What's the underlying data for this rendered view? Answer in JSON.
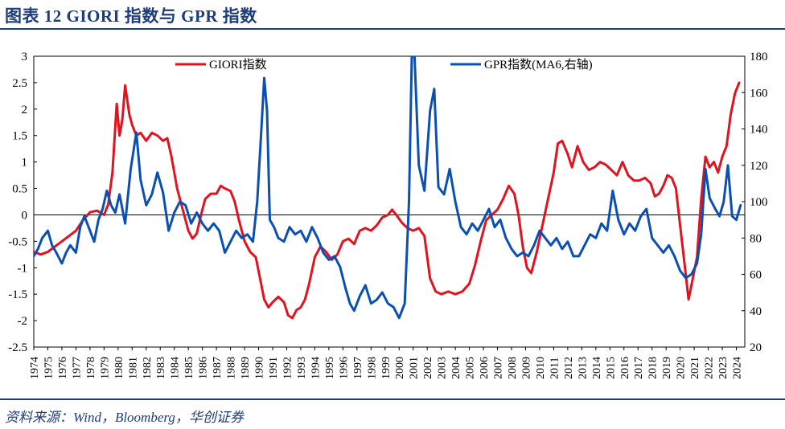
{
  "title": "图表 12 GIORI 指数与 GPR 指数",
  "source": "资料来源：Wind，Bloomberg，华创证券",
  "colors": {
    "giori": "#e3121e",
    "gpr": "#0a50b4",
    "accent": "#1f3d7a"
  },
  "chart_data": {
    "type": "line",
    "title": "GIORI 指数与 GPR 指数",
    "legend_position": "top",
    "left_axis": {
      "ylim": [
        -2.5,
        3
      ],
      "ticks": [
        3,
        2.5,
        2,
        1.5,
        1,
        0.5,
        0,
        -0.5,
        -1,
        -1.5,
        -2,
        -2.5
      ]
    },
    "right_axis": {
      "ylim": [
        20,
        180
      ],
      "ticks": [
        180,
        160,
        140,
        120,
        100,
        80,
        60,
        40,
        20
      ]
    },
    "x_axis": {
      "xlim": [
        1974,
        2024.6
      ],
      "tick_labels": [
        "1974",
        "1975",
        "1976",
        "1977",
        "1978",
        "1979",
        "1980",
        "1981",
        "1982",
        "1983",
        "1984",
        "1985",
        "1986",
        "1987",
        "1988",
        "1989",
        "1990",
        "1991",
        "1992",
        "1993",
        "1994",
        "1995",
        "1996",
        "1997",
        "1998",
        "1999",
        "2000",
        "2001",
        "2002",
        "2003",
        "2004",
        "2005",
        "2006",
        "2007",
        "2008",
        "2009",
        "2010",
        "2011",
        "2012",
        "2013",
        "2014",
        "2015",
        "2016",
        "2017",
        "2018",
        "2019",
        "2020",
        "2021",
        "2022",
        "2023",
        "2024"
      ]
    },
    "series": [
      {
        "name": "GIORI指数",
        "axis": "left",
        "color": "#e3121e",
        "points": [
          [
            1974.0,
            -0.7
          ],
          [
            1974.5,
            -0.75
          ],
          [
            1975.0,
            -0.7
          ],
          [
            1975.5,
            -0.6
          ],
          [
            1976.0,
            -0.5
          ],
          [
            1976.5,
            -0.4
          ],
          [
            1977.0,
            -0.3
          ],
          [
            1977.5,
            -0.1
          ],
          [
            1978.0,
            0.05
          ],
          [
            1978.5,
            0.08
          ],
          [
            1979.0,
            0.0
          ],
          [
            1979.3,
            0.2
          ],
          [
            1979.6,
            0.8
          ],
          [
            1979.9,
            2.1
          ],
          [
            1980.1,
            1.5
          ],
          [
            1980.3,
            1.8
          ],
          [
            1980.5,
            2.45
          ],
          [
            1980.8,
            1.9
          ],
          [
            1981.0,
            1.7
          ],
          [
            1981.3,
            1.5
          ],
          [
            1981.6,
            1.55
          ],
          [
            1982.0,
            1.4
          ],
          [
            1982.4,
            1.55
          ],
          [
            1982.8,
            1.5
          ],
          [
            1983.2,
            1.4
          ],
          [
            1983.5,
            1.45
          ],
          [
            1983.8,
            1.1
          ],
          [
            1984.2,
            0.5
          ],
          [
            1984.6,
            0.1
          ],
          [
            1985.0,
            -0.3
          ],
          [
            1985.3,
            -0.45
          ],
          [
            1985.6,
            -0.35
          ],
          [
            1985.9,
            0.0
          ],
          [
            1986.2,
            0.3
          ],
          [
            1986.6,
            0.4
          ],
          [
            1987.0,
            0.4
          ],
          [
            1987.3,
            0.55
          ],
          [
            1987.6,
            0.5
          ],
          [
            1988.0,
            0.45
          ],
          [
            1988.3,
            0.25
          ],
          [
            1988.6,
            -0.1
          ],
          [
            1989.0,
            -0.5
          ],
          [
            1989.4,
            -0.7
          ],
          [
            1989.8,
            -0.8
          ],
          [
            1990.1,
            -1.2
          ],
          [
            1990.4,
            -1.6
          ],
          [
            1990.7,
            -1.75
          ],
          [
            1991.0,
            -1.65
          ],
          [
            1991.4,
            -1.55
          ],
          [
            1991.8,
            -1.65
          ],
          [
            1992.1,
            -1.9
          ],
          [
            1992.4,
            -1.95
          ],
          [
            1992.7,
            -1.8
          ],
          [
            1993.0,
            -1.75
          ],
          [
            1993.3,
            -1.6
          ],
          [
            1993.6,
            -1.3
          ],
          [
            1994.0,
            -0.8
          ],
          [
            1994.4,
            -0.6
          ],
          [
            1994.8,
            -0.7
          ],
          [
            1995.2,
            -0.85
          ],
          [
            1995.6,
            -0.75
          ],
          [
            1996.0,
            -0.5
          ],
          [
            1996.4,
            -0.45
          ],
          [
            1996.8,
            -0.55
          ],
          [
            1997.2,
            -0.3
          ],
          [
            1997.6,
            -0.25
          ],
          [
            1998.0,
            -0.3
          ],
          [
            1998.4,
            -0.2
          ],
          [
            1998.8,
            -0.05
          ],
          [
            1999.2,
            0.0
          ],
          [
            1999.5,
            0.1
          ],
          [
            1999.8,
            0.0
          ],
          [
            2000.2,
            -0.15
          ],
          [
            2000.6,
            -0.25
          ],
          [
            2001.0,
            -0.3
          ],
          [
            2001.4,
            -0.25
          ],
          [
            2001.8,
            -0.4
          ],
          [
            2002.2,
            -1.2
          ],
          [
            2002.6,
            -1.45
          ],
          [
            2003.0,
            -1.5
          ],
          [
            2003.5,
            -1.45
          ],
          [
            2004.0,
            -1.5
          ],
          [
            2004.5,
            -1.45
          ],
          [
            2005.0,
            -1.3
          ],
          [
            2005.4,
            -0.95
          ],
          [
            2005.8,
            -0.5
          ],
          [
            2006.2,
            -0.1
          ],
          [
            2006.6,
            0.0
          ],
          [
            2007.0,
            0.1
          ],
          [
            2007.4,
            0.3
          ],
          [
            2007.8,
            0.55
          ],
          [
            2008.2,
            0.4
          ],
          [
            2008.5,
            0.0
          ],
          [
            2008.8,
            -0.6
          ],
          [
            2009.1,
            -1.0
          ],
          [
            2009.4,
            -1.1
          ],
          [
            2009.8,
            -0.7
          ],
          [
            2010.2,
            -0.2
          ],
          [
            2010.6,
            0.3
          ],
          [
            2011.0,
            0.8
          ],
          [
            2011.3,
            1.35
          ],
          [
            2011.6,
            1.4
          ],
          [
            2012.0,
            1.15
          ],
          [
            2012.3,
            0.9
          ],
          [
            2012.7,
            1.3
          ],
          [
            2013.1,
            1.0
          ],
          [
            2013.5,
            0.85
          ],
          [
            2013.9,
            0.9
          ],
          [
            2014.3,
            1.0
          ],
          [
            2014.7,
            0.95
          ],
          [
            2015.1,
            0.85
          ],
          [
            2015.5,
            0.75
          ],
          [
            2015.9,
            1.0
          ],
          [
            2016.3,
            0.75
          ],
          [
            2016.7,
            0.65
          ],
          [
            2017.1,
            0.65
          ],
          [
            2017.5,
            0.7
          ],
          [
            2017.9,
            0.6
          ],
          [
            2018.2,
            0.35
          ],
          [
            2018.5,
            0.4
          ],
          [
            2018.8,
            0.55
          ],
          [
            2019.1,
            0.75
          ],
          [
            2019.4,
            0.7
          ],
          [
            2019.7,
            0.5
          ],
          [
            2020.0,
            -0.2
          ],
          [
            2020.3,
            -0.9
          ],
          [
            2020.6,
            -1.6
          ],
          [
            2020.9,
            -1.2
          ],
          [
            2021.2,
            -0.8
          ],
          [
            2021.5,
            0.3
          ],
          [
            2021.8,
            1.1
          ],
          [
            2022.1,
            0.9
          ],
          [
            2022.4,
            1.0
          ],
          [
            2022.7,
            0.8
          ],
          [
            2023.0,
            1.1
          ],
          [
            2023.3,
            1.3
          ],
          [
            2023.6,
            1.9
          ],
          [
            2023.9,
            2.3
          ],
          [
            2024.2,
            2.5
          ]
        ]
      },
      {
        "name": "GPR指数(MA6,右轴)",
        "axis": "right",
        "color": "#0a50b4",
        "points": [
          [
            1974.0,
            70
          ],
          [
            1974.3,
            74
          ],
          [
            1974.6,
            80
          ],
          [
            1975.0,
            84
          ],
          [
            1975.3,
            76
          ],
          [
            1975.6,
            72
          ],
          [
            1976.0,
            66
          ],
          [
            1976.3,
            72
          ],
          [
            1976.6,
            76
          ],
          [
            1977.0,
            72
          ],
          [
            1977.3,
            86
          ],
          [
            1977.6,
            92
          ],
          [
            1978.0,
            84
          ],
          [
            1978.3,
            78
          ],
          [
            1978.6,
            90
          ],
          [
            1978.9,
            96
          ],
          [
            1979.2,
            106
          ],
          [
            1979.5,
            98
          ],
          [
            1979.8,
            94
          ],
          [
            1980.1,
            104
          ],
          [
            1980.5,
            88
          ],
          [
            1980.9,
            118
          ],
          [
            1981.3,
            138
          ],
          [
            1981.6,
            112
          ],
          [
            1982.0,
            98
          ],
          [
            1982.4,
            104
          ],
          [
            1982.8,
            116
          ],
          [
            1983.2,
            105
          ],
          [
            1983.6,
            84
          ],
          [
            1984.0,
            94
          ],
          [
            1984.4,
            100
          ],
          [
            1984.8,
            98
          ],
          [
            1985.2,
            88
          ],
          [
            1985.6,
            94
          ],
          [
            1986.0,
            88
          ],
          [
            1986.4,
            84
          ],
          [
            1986.8,
            88
          ],
          [
            1987.2,
            84
          ],
          [
            1987.6,
            72
          ],
          [
            1988.0,
            78
          ],
          [
            1988.4,
            84
          ],
          [
            1988.8,
            80
          ],
          [
            1989.2,
            82
          ],
          [
            1989.6,
            78
          ],
          [
            1989.9,
            100
          ],
          [
            1990.2,
            140
          ],
          [
            1990.4,
            168
          ],
          [
            1990.6,
            150
          ],
          [
            1990.8,
            90
          ],
          [
            1991.1,
            86
          ],
          [
            1991.4,
            80
          ],
          [
            1991.8,
            78
          ],
          [
            1992.2,
            86
          ],
          [
            1992.6,
            82
          ],
          [
            1993.0,
            84
          ],
          [
            1993.4,
            78
          ],
          [
            1993.8,
            86
          ],
          [
            1994.2,
            80
          ],
          [
            1994.6,
            72
          ],
          [
            1995.0,
            68
          ],
          [
            1995.4,
            70
          ],
          [
            1995.8,
            64
          ],
          [
            1996.2,
            52
          ],
          [
            1996.5,
            44
          ],
          [
            1996.8,
            40
          ],
          [
            1997.2,
            48
          ],
          [
            1997.6,
            54
          ],
          [
            1998.0,
            44
          ],
          [
            1998.4,
            46
          ],
          [
            1998.8,
            50
          ],
          [
            1999.2,
            44
          ],
          [
            1999.6,
            42
          ],
          [
            2000.0,
            36
          ],
          [
            2000.4,
            44
          ],
          [
            2000.7,
            100
          ],
          [
            2000.9,
            180
          ],
          [
            2001.1,
            180
          ],
          [
            2001.4,
            120
          ],
          [
            2001.8,
            106
          ],
          [
            2002.2,
            150
          ],
          [
            2002.5,
            162
          ],
          [
            2002.8,
            108
          ],
          [
            2003.2,
            104
          ],
          [
            2003.6,
            118
          ],
          [
            2004.0,
            100
          ],
          [
            2004.4,
            86
          ],
          [
            2004.8,
            82
          ],
          [
            2005.2,
            88
          ],
          [
            2005.6,
            84
          ],
          [
            2006.0,
            90
          ],
          [
            2006.4,
            96
          ],
          [
            2006.8,
            86
          ],
          [
            2007.2,
            90
          ],
          [
            2007.6,
            80
          ],
          [
            2008.0,
            74
          ],
          [
            2008.4,
            70
          ],
          [
            2008.8,
            72
          ],
          [
            2009.2,
            70
          ],
          [
            2009.6,
            76
          ],
          [
            2010.0,
            84
          ],
          [
            2010.4,
            80
          ],
          [
            2010.8,
            76
          ],
          [
            2011.2,
            80
          ],
          [
            2011.6,
            74
          ],
          [
            2012.0,
            78
          ],
          [
            2012.4,
            70
          ],
          [
            2012.8,
            70
          ],
          [
            2013.2,
            76
          ],
          [
            2013.6,
            82
          ],
          [
            2014.0,
            80
          ],
          [
            2014.4,
            88
          ],
          [
            2014.8,
            84
          ],
          [
            2015.2,
            106
          ],
          [
            2015.6,
            90
          ],
          [
            2016.0,
            82
          ],
          [
            2016.4,
            88
          ],
          [
            2016.8,
            84
          ],
          [
            2017.2,
            92
          ],
          [
            2017.6,
            96
          ],
          [
            2018.0,
            80
          ],
          [
            2018.4,
            76
          ],
          [
            2018.8,
            72
          ],
          [
            2019.2,
            76
          ],
          [
            2019.6,
            70
          ],
          [
            2020.0,
            62
          ],
          [
            2020.4,
            58
          ],
          [
            2020.8,
            60
          ],
          [
            2021.2,
            66
          ],
          [
            2021.5,
            82
          ],
          [
            2021.8,
            118
          ],
          [
            2022.1,
            102
          ],
          [
            2022.5,
            96
          ],
          [
            2022.8,
            92
          ],
          [
            2023.1,
            100
          ],
          [
            2023.4,
            120
          ],
          [
            2023.7,
            92
          ],
          [
            2024.0,
            90
          ],
          [
            2024.3,
            98
          ]
        ]
      }
    ]
  }
}
